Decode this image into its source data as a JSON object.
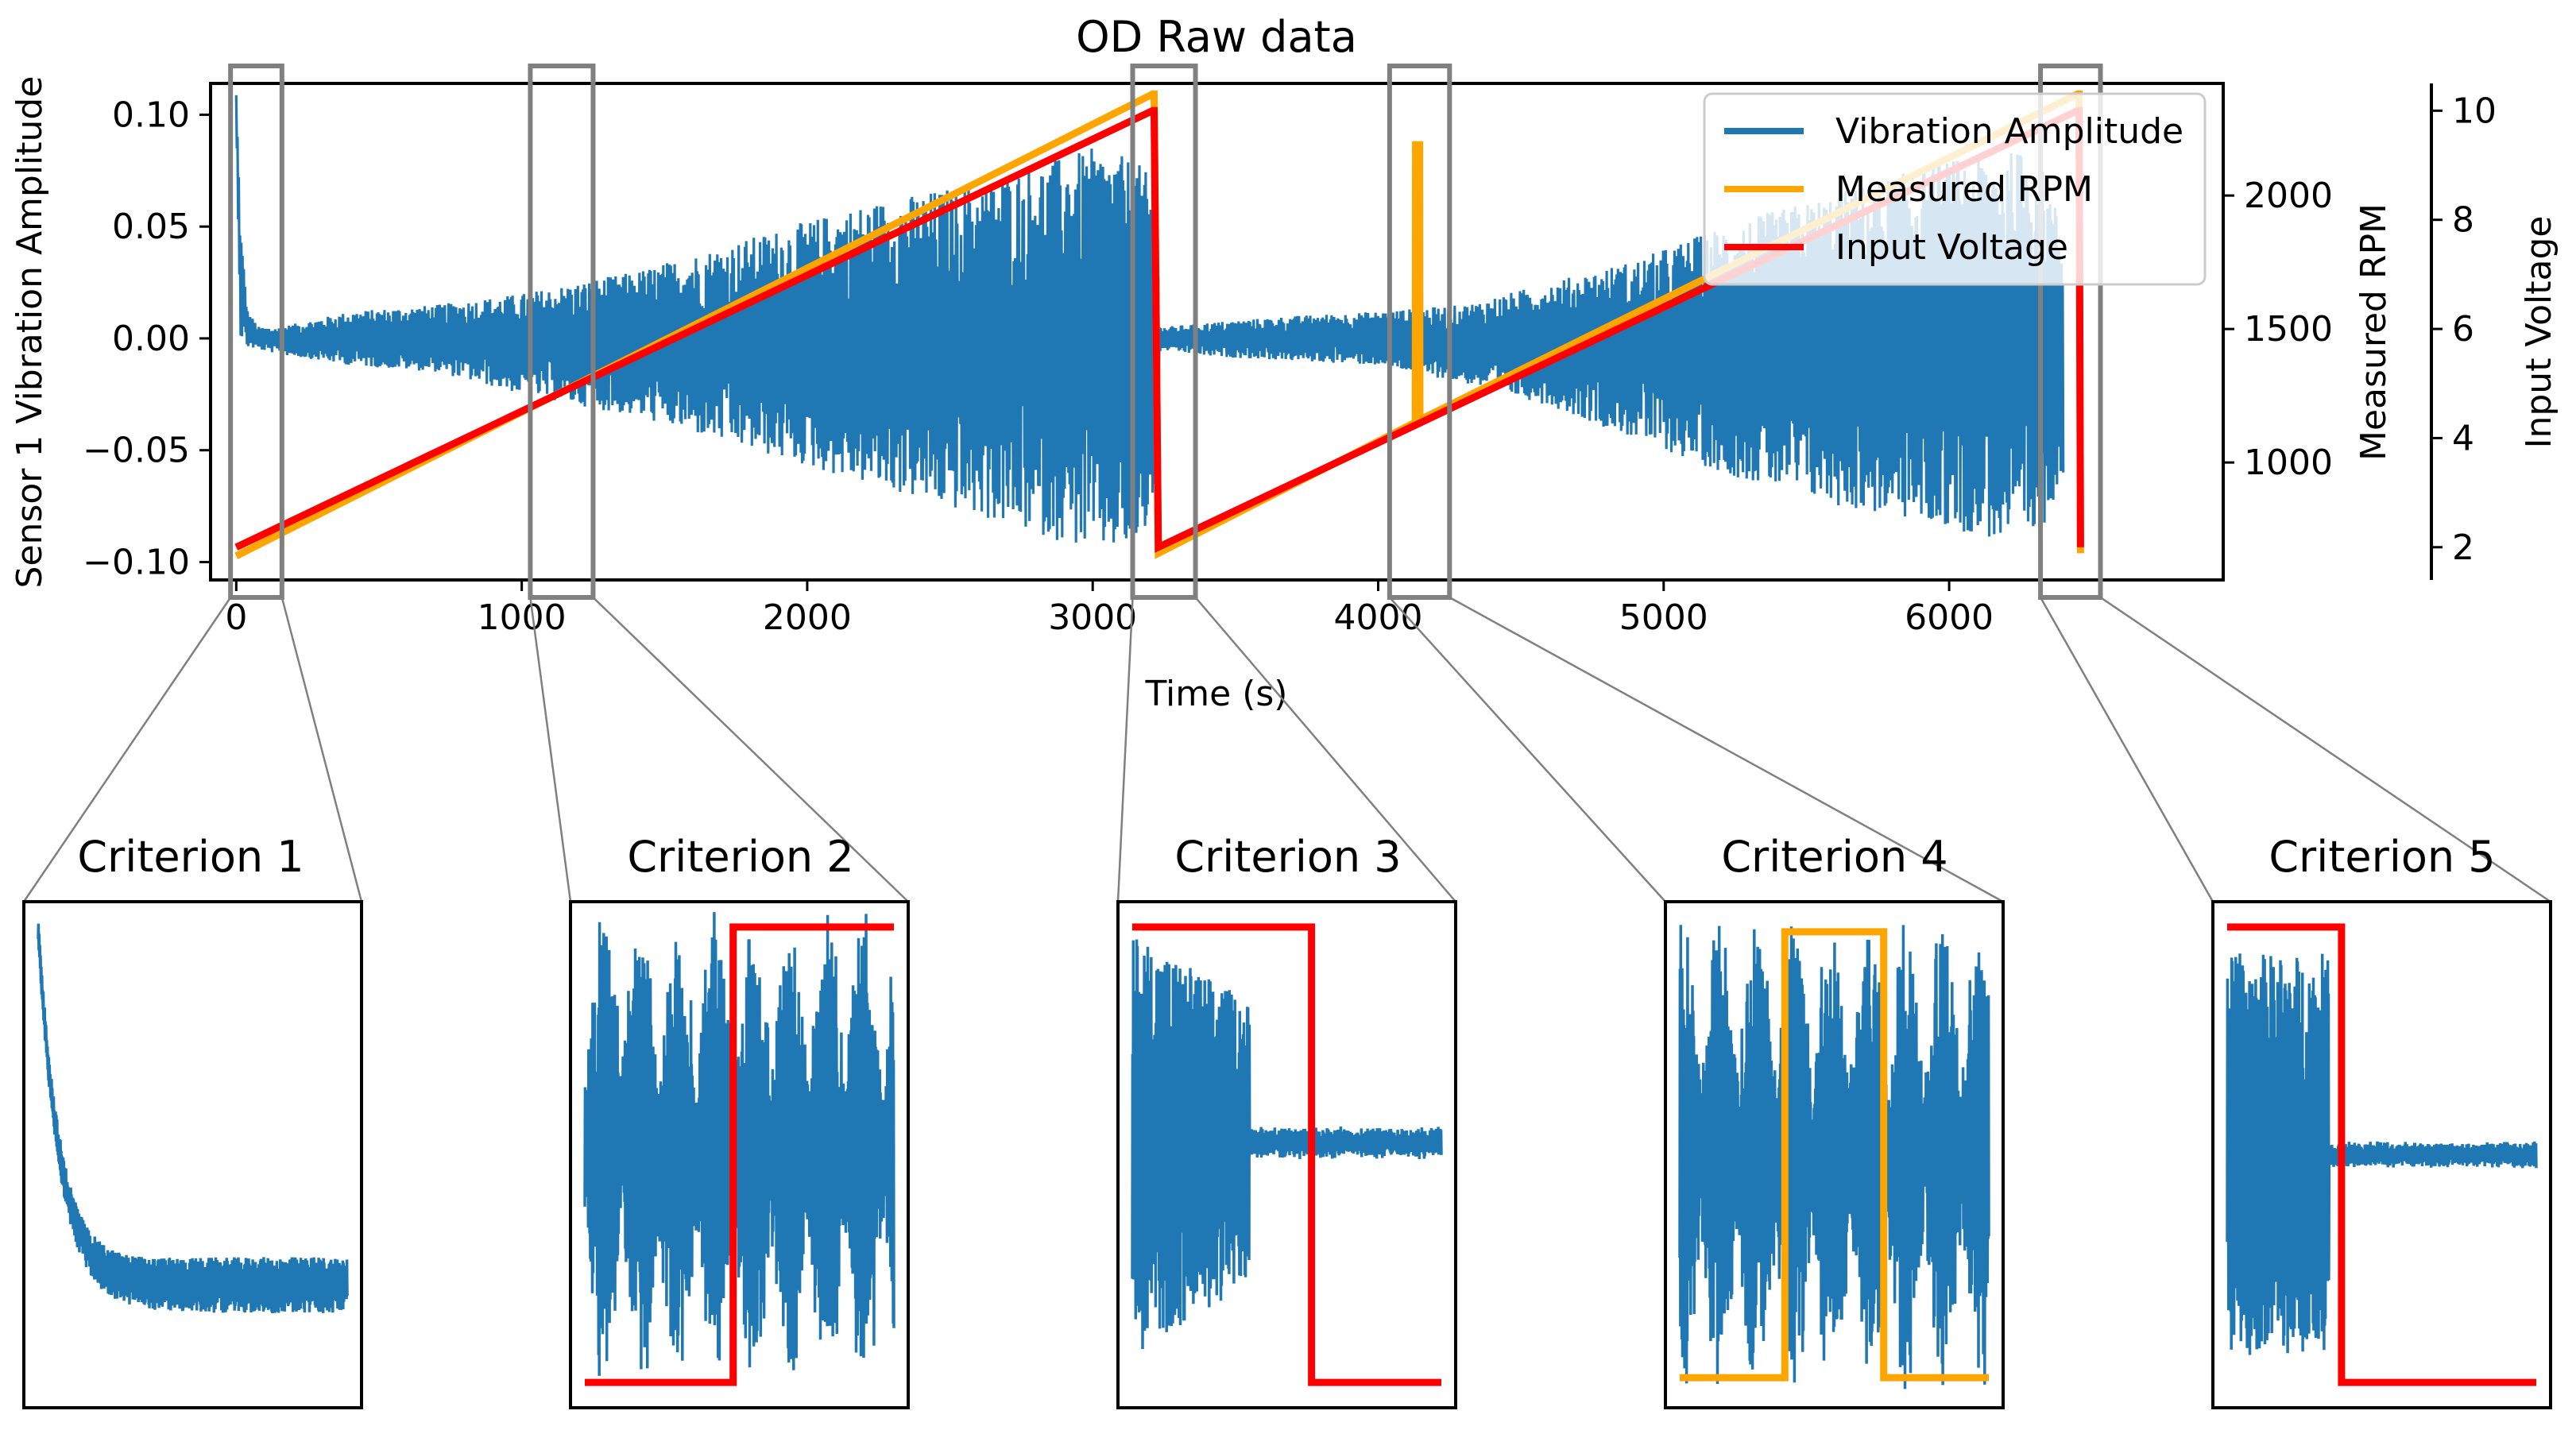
{
  "colors": {
    "vibration": "#1f77b4",
    "rpm": "#ffa500",
    "voltage": "#ff0000",
    "highlight": "#808080"
  },
  "chart_data": [
    {
      "type": "line",
      "title": "OD Raw data",
      "xlabel": "Time (s)",
      "ylabel": "Sensor 1 Vibration Amplitude",
      "ylabel_right_1": "Measured RPM",
      "ylabel_right_2": "Input Voltage",
      "xlim": [
        -90,
        6960
      ],
      "ylim": [
        -0.108,
        0.114
      ],
      "ylim_rpm": [
        560,
        2420
      ],
      "ylim_voltage": [
        1.4,
        10.5
      ],
      "x_ticks": [
        0,
        1000,
        2000,
        3000,
        4000,
        5000,
        6000
      ],
      "x_tick_labels": [
        "0",
        "1000",
        "2000",
        "3000",
        "4000",
        "5000",
        "6000"
      ],
      "y_ticks": [
        0.1,
        0.05,
        0.0,
        -0.05,
        -0.1
      ],
      "y_tick_labels": [
        "0.10",
        "0.05",
        "0.00",
        "−0.05",
        "−0.10"
      ],
      "rpm_ticks": [
        2000,
        1500,
        1000
      ],
      "rpm_tick_labels": [
        "2000",
        "1500",
        "1000"
      ],
      "voltage_ticks": [
        10,
        8,
        6,
        4,
        2
      ],
      "voltage_tick_labels": [
        "10",
        "8",
        "6",
        "4",
        "2"
      ],
      "grid": false,
      "legend_position": "top-right",
      "series": [
        {
          "name": "Vibration Amplitude",
          "axis": "left",
          "envelope": {
            "x": [
              0,
              15,
              40,
              80,
              150,
              400,
              700,
              1000,
              1400,
              1800,
              2200,
              2600,
              3000,
              3150,
              3215,
              3240,
              3400,
              3700,
              4000,
              4300,
              4600,
              4900,
              5200,
              5600,
              6000,
              6300,
              6400
            ],
            "upper": [
              0.11,
              0.05,
              0.012,
              0.005,
              0.005,
              0.012,
              0.015,
              0.02,
              0.03,
              0.045,
              0.06,
              0.07,
              0.085,
              0.08,
              0.07,
              0.005,
              0.007,
              0.01,
              0.012,
              0.015,
              0.025,
              0.035,
              0.05,
              0.065,
              0.08,
              0.085,
              0.05
            ],
            "lower": [
              0.095,
              0.0,
              -0.004,
              -0.005,
              -0.007,
              -0.012,
              -0.015,
              -0.025,
              -0.035,
              -0.05,
              -0.065,
              -0.08,
              -0.095,
              -0.095,
              -0.08,
              -0.005,
              -0.008,
              -0.01,
              -0.012,
              -0.02,
              -0.03,
              -0.045,
              -0.06,
              -0.075,
              -0.085,
              -0.095,
              -0.06
            ]
          }
        },
        {
          "name": "Measured RPM",
          "axis": "right_rpm",
          "x": [
            0,
            3210,
            3215,
            3230,
            4130,
            4131,
            4145,
            4146,
            6450,
            6455,
            6460
          ],
          "values": [
            650,
            2380,
            2380,
            660,
            1150,
            2190,
            2190,
            1160,
            2380,
            2380,
            660
          ]
        },
        {
          "name": "Input Voltage",
          "axis": "right_voltage",
          "x": [
            0,
            3210,
            3215,
            3230,
            6450,
            6455,
            6460
          ],
          "values": [
            2.0,
            10.0,
            10.0,
            2.0,
            10.0,
            10.0,
            2.0
          ]
        }
      ],
      "highlight_boxes": [
        {
          "label": "Criterion 1",
          "x_start": -20,
          "x_end": 160
        },
        {
          "label": "Criterion 2",
          "x_start": 1030,
          "x_end": 1250
        },
        {
          "label": "Criterion 3",
          "x_start": 3140,
          "x_end": 3360
        },
        {
          "label": "Criterion 4",
          "x_start": 4040,
          "x_end": 4250
        },
        {
          "label": "Criterion 5",
          "x_start": 6320,
          "x_end": 6530
        }
      ]
    },
    {
      "type": "line",
      "title": "Criterion 1",
      "description_series": [
        {
          "name": "Vibration Amplitude",
          "shape": "exponential decay settling into low-amplitude noise"
        }
      ]
    },
    {
      "type": "line",
      "title": "Criterion 2",
      "description_series": [
        {
          "name": "Vibration Amplitude",
          "shape": "bursty oscillation"
        },
        {
          "name": "Input Voltage",
          "shape": "step up from low to high at 48% of window"
        }
      ]
    },
    {
      "type": "line",
      "title": "Criterion 3",
      "description_series": [
        {
          "name": "Vibration Amplitude",
          "shape": "large oscillation collapsing to small noise"
        },
        {
          "name": "Input Voltage",
          "shape": "step down from high to low at 58% of window"
        }
      ]
    },
    {
      "type": "line",
      "title": "Criterion 4",
      "description_series": [
        {
          "name": "Vibration Amplitude",
          "shape": "bursty oscillation"
        },
        {
          "name": "Measured RPM",
          "shape": "short spike up between 34% and 66% of window"
        }
      ]
    },
    {
      "type": "line",
      "title": "Criterion 5",
      "description_series": [
        {
          "name": "Vibration Amplitude",
          "shape": "large oscillation collapsing to small noise"
        },
        {
          "name": "Input Voltage",
          "shape": "step down from high to low at 37% of window"
        }
      ]
    }
  ]
}
